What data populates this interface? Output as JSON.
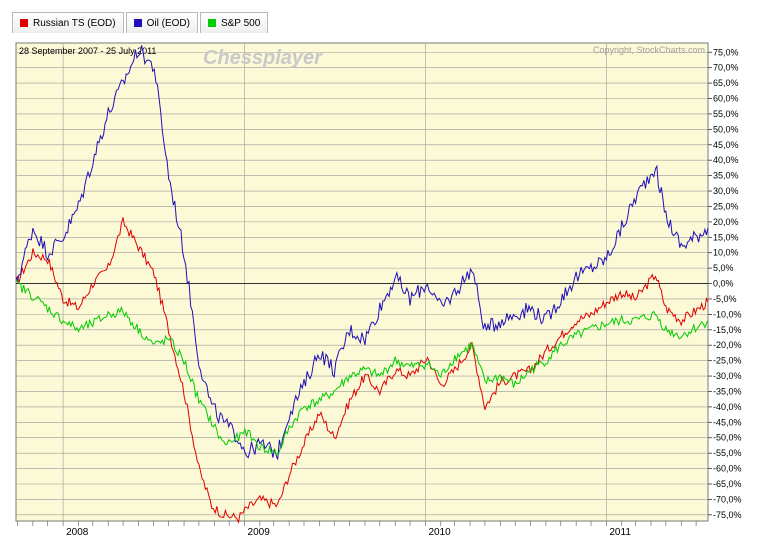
{
  "legend": [
    {
      "label": "Russian TS (EOD)",
      "color": "#e00000"
    },
    {
      "label": "Oil (EOD)",
      "color": "#1f0fb8"
    },
    {
      "label": "S&P 500",
      "color": "#00cc00"
    }
  ],
  "date_range": "28 September 2007 - 25 July 2011",
  "watermark": "Chessplayer",
  "copyright": "Copyright, StockCharts.com",
  "colors": {
    "plot_fill": "#fcf9d6",
    "grid": "#9a9a9a",
    "zero_line": "#333333"
  },
  "chart_data": {
    "type": "line",
    "title": "",
    "xlabel": "",
    "ylabel": "",
    "x_start": "2007-09-28",
    "x_end": "2011-07-25",
    "ylim": [
      -77,
      78
    ],
    "y_ticks": [
      75,
      70,
      65,
      60,
      55,
      50,
      45,
      40,
      35,
      30,
      25,
      20,
      15,
      10,
      5,
      0,
      -5,
      -10,
      -15,
      -20,
      -25,
      -30,
      -35,
      -40,
      -45,
      -50,
      -55,
      -60,
      -65,
      -70,
      -75
    ],
    "y_tick_labels": [
      "75,0%",
      "70,0%",
      "65,0%",
      "60,0%",
      "55,0%",
      "50,0%",
      "45,0%",
      "40,0%",
      "35,0%",
      "30,0%",
      "25,0%",
      "20,0%",
      "15,0%",
      "10,0%",
      "5,0%",
      "0,0%",
      "-5,0%",
      "-10,0%",
      "-15,0%",
      "-20,0%",
      "-25,0%",
      "-30,0%",
      "-35,0%",
      "-40,0%",
      "-45,0%",
      "-50,0%",
      "-55,0%",
      "-60,0%",
      "-65,0%",
      "-70,0%",
      "-75,0%"
    ],
    "x_tick_labels": [
      {
        "label": "2008",
        "date": "2008-01-01"
      },
      {
        "label": "2009",
        "date": "2009-01-01"
      },
      {
        "label": "2010",
        "date": "2010-01-01"
      },
      {
        "label": "2011",
        "date": "2011-01-01"
      }
    ],
    "x_dates": [
      "2007-09-28",
      "2007-11-01",
      "2007-12-01",
      "2008-01-01",
      "2008-02-01",
      "2008-03-01",
      "2008-04-01",
      "2008-05-01",
      "2008-06-01",
      "2008-07-03",
      "2008-08-01",
      "2008-09-01",
      "2008-10-01",
      "2008-10-27",
      "2008-11-20",
      "2008-12-20",
      "2009-01-05",
      "2009-02-01",
      "2009-03-09",
      "2009-04-01",
      "2009-05-01",
      "2009-06-01",
      "2009-07-01",
      "2009-08-01",
      "2009-09-01",
      "2009-10-01",
      "2009-11-01",
      "2009-12-01",
      "2010-01-05",
      "2010-02-01",
      "2010-03-01",
      "2010-04-05",
      "2010-05-01",
      "2010-06-01",
      "2010-07-01",
      "2010-08-01",
      "2010-09-01",
      "2010-10-01",
      "2010-11-01",
      "2010-12-01",
      "2011-01-01",
      "2011-02-01",
      "2011-03-01",
      "2011-04-10",
      "2011-05-01",
      "2011-06-01",
      "2011-07-25"
    ],
    "series": [
      {
        "name": "Russian TS (EOD)",
        "color": "#e00000",
        "values": [
          0,
          10,
          8,
          -5,
          -8,
          0,
          5,
          20,
          12,
          3,
          -15,
          -35,
          -60,
          -72,
          -75,
          -76,
          -73,
          -70,
          -72,
          -62,
          -52,
          -42,
          -50,
          -38,
          -30,
          -35,
          -28,
          -30,
          -24,
          -33,
          -28,
          -20,
          -40,
          -32,
          -30,
          -28,
          -22,
          -17,
          -12,
          -10,
          -6,
          -3,
          -5,
          3,
          -8,
          -12,
          -6
        ]
      },
      {
        "name": "Oil (EOD)",
        "color": "#1f0fb8",
        "values": [
          0,
          18,
          10,
          15,
          25,
          40,
          55,
          65,
          76,
          70,
          35,
          10,
          -25,
          -40,
          -45,
          -50,
          -55,
          -52,
          -55,
          -42,
          -33,
          -22,
          -28,
          -15,
          -18,
          -8,
          2,
          -5,
          0,
          -8,
          -3,
          5,
          -15,
          -12,
          -10,
          -8,
          -12,
          -5,
          2,
          5,
          8,
          18,
          28,
          38,
          22,
          12,
          18
        ]
      },
      {
        "name": "S&P 500",
        "color": "#00cc00",
        "values": [
          0,
          -4,
          -8,
          -12,
          -15,
          -13,
          -10,
          -9,
          -15,
          -20,
          -18,
          -25,
          -38,
          -45,
          -52,
          -50,
          -48,
          -53,
          -55,
          -47,
          -40,
          -38,
          -35,
          -30,
          -28,
          -30,
          -25,
          -27,
          -26,
          -30,
          -24,
          -20,
          -32,
          -30,
          -33,
          -28,
          -25,
          -20,
          -17,
          -15,
          -13,
          -12,
          -12,
          -10,
          -15,
          -17,
          -12
        ]
      }
    ]
  }
}
